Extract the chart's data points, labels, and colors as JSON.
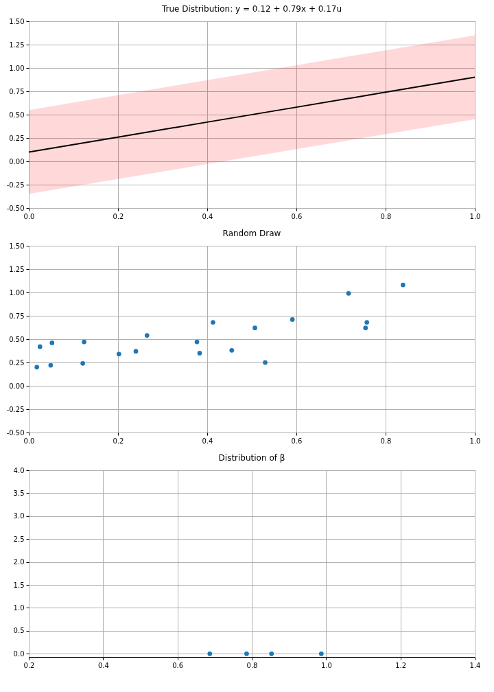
{
  "chart_data": [
    {
      "type": "line",
      "title": "True Distribution: y = 0.12 + 0.79x + 0.17u",
      "xlim": [
        0,
        1
      ],
      "ylim": [
        -0.5,
        1.5
      ],
      "xticks": [
        {
          "value": 0,
          "label": "0.0"
        },
        {
          "value": 0.2,
          "label": "0.2"
        },
        {
          "value": 0.4,
          "label": "0.4"
        },
        {
          "value": 0.6,
          "label": "0.6"
        },
        {
          "value": 0.8,
          "label": "0.8"
        },
        {
          "value": 1,
          "label": "1.0"
        }
      ],
      "yticks": [
        {
          "value": -0.5,
          "label": "-0.50"
        },
        {
          "value": -0.25,
          "label": "-0.25"
        },
        {
          "value": 0,
          "label": "0.00"
        },
        {
          "value": 0.25,
          "label": "0.25"
        },
        {
          "value": 0.5,
          "label": "0.50"
        },
        {
          "value": 0.75,
          "label": "0.75"
        },
        {
          "value": 1,
          "label": "1.00"
        },
        {
          "value": 1.25,
          "label": "1.25"
        },
        {
          "value": 1.5,
          "label": "1.50"
        }
      ],
      "grid": true,
      "x": [
        0,
        0.2,
        0.4,
        0.6,
        0.8,
        1
      ],
      "series": [
        {
          "color": "#000000",
          "values": [
            0.1,
            0.26,
            0.42,
            0.58,
            0.74,
            0.9
          ],
          "lower": [
            -0.35,
            -0.19,
            -0.03,
            0.13,
            0.29,
            0.45
          ],
          "upper": [
            0.55,
            0.71,
            0.87,
            1.03,
            1.19,
            1.35
          ]
        }
      ]
    },
    {
      "type": "scatter",
      "title": "Random Draw",
      "xlim": [
        0,
        1
      ],
      "ylim": [
        -0.5,
        1.5
      ],
      "xticks": [
        {
          "value": 0,
          "label": "0.0"
        },
        {
          "value": 0.2,
          "label": "0.2"
        },
        {
          "value": 0.4,
          "label": "0.4"
        },
        {
          "value": 0.6,
          "label": "0.6"
        },
        {
          "value": 0.8,
          "label": "0.8"
        },
        {
          "value": 1,
          "label": "1.0"
        }
      ],
      "yticks": [
        {
          "value": -0.5,
          "label": "-0.50"
        },
        {
          "value": -0.25,
          "label": "-0.25"
        },
        {
          "value": 0,
          "label": "0.00"
        },
        {
          "value": 0.25,
          "label": "0.25"
        },
        {
          "value": 0.5,
          "label": "0.50"
        },
        {
          "value": 0.75,
          "label": "0.75"
        },
        {
          "value": 1,
          "label": "1.00"
        },
        {
          "value": 1.25,
          "label": "1.25"
        },
        {
          "value": 1.5,
          "label": "1.50"
        }
      ],
      "grid": true,
      "marker": "circle",
      "x": [
        0.018,
        0.025,
        0.049,
        0.052,
        0.121,
        0.124,
        0.202,
        0.24,
        0.265,
        0.377,
        0.383,
        0.413,
        0.455,
        0.507,
        0.53,
        0.591,
        0.717,
        0.755,
        0.758,
        0.839
      ],
      "series": [
        {
          "color": "#1f77b4",
          "values": [
            0.2,
            0.42,
            0.22,
            0.46,
            0.24,
            0.47,
            0.34,
            0.37,
            0.54,
            0.47,
            0.35,
            0.68,
            0.38,
            0.62,
            0.25,
            0.71,
            0.99,
            0.62,
            0.68,
            1.08
          ]
        }
      ]
    },
    {
      "type": "scatter",
      "title": "Distribution of β",
      "xlim": [
        0.2,
        1.4
      ],
      "ylim": [
        -0.07,
        4
      ],
      "xticks": [
        {
          "value": 0.2,
          "label": "0.2"
        },
        {
          "value": 0.4,
          "label": "0.4"
        },
        {
          "value": 0.6,
          "label": "0.6"
        },
        {
          "value": 0.8,
          "label": "0.8"
        },
        {
          "value": 1,
          "label": "1.0"
        },
        {
          "value": 1.2,
          "label": "1.2"
        },
        {
          "value": 1.4,
          "label": "1.4"
        }
      ],
      "yticks": [
        {
          "value": 0,
          "label": "0.0"
        },
        {
          "value": 0.5,
          "label": "0.5"
        },
        {
          "value": 1,
          "label": "1.0"
        },
        {
          "value": 1.5,
          "label": "1.5"
        },
        {
          "value": 2,
          "label": "2.0"
        },
        {
          "value": 2.5,
          "label": "2.5"
        },
        {
          "value": 3,
          "label": "3.0"
        },
        {
          "value": 3.5,
          "label": "3.5"
        },
        {
          "value": 4,
          "label": "4.0"
        }
      ],
      "grid": true,
      "marker": "circle",
      "x": [
        0.687,
        0.786,
        0.853,
        0.987
      ],
      "series": [
        {
          "color": "#1f77b4",
          "values": [
            0,
            0,
            0,
            0
          ]
        }
      ]
    }
  ]
}
